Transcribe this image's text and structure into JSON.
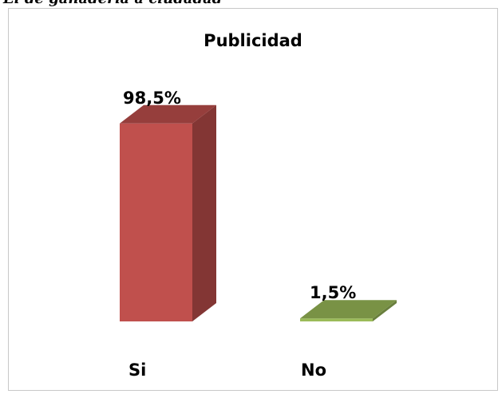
{
  "top_caption": "El de ganadería a ciudadad",
  "chart_data": {
    "type": "bar",
    "title": "Publicidad",
    "categories": [
      "Si",
      "No"
    ],
    "values": [
      98.5,
      1.5
    ],
    "value_labels": [
      "98,5%",
      "1,5%"
    ],
    "ylim": [
      0,
      100
    ],
    "grid": false,
    "legend": "none",
    "colors": [
      "#c0504d",
      "#9bbb59"
    ]
  }
}
